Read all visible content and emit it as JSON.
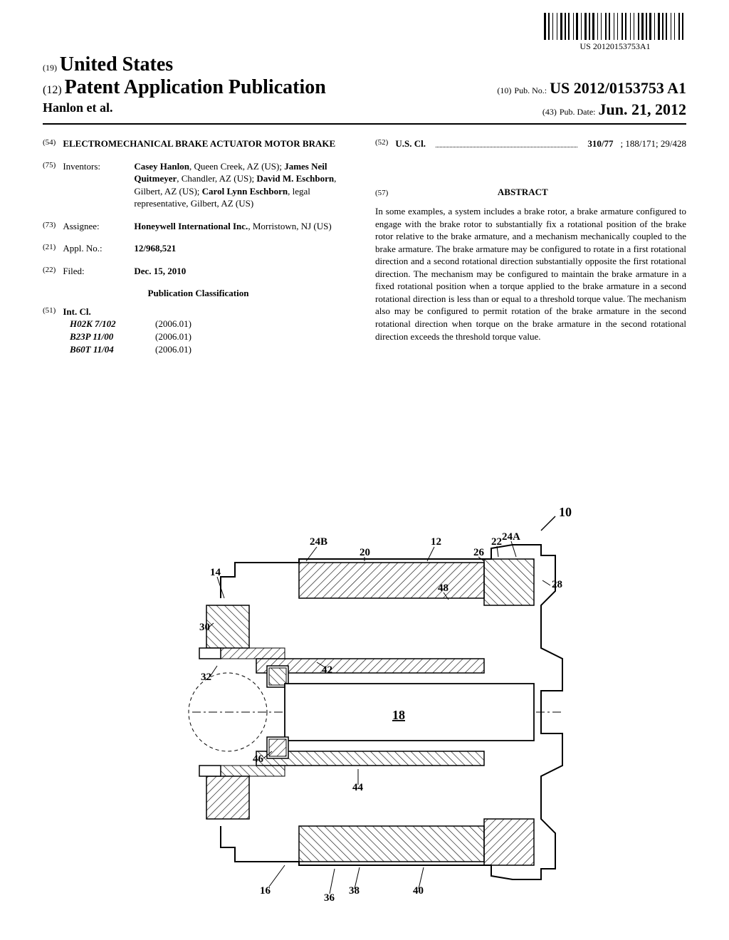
{
  "barcode": {
    "text": "US 20120153753A1",
    "bar_widths": [
      3,
      1,
      2,
      2,
      1,
      3,
      1,
      2,
      3,
      1,
      2,
      1,
      2,
      3,
      1,
      1,
      3,
      2,
      1,
      2,
      3,
      1,
      2,
      1,
      3,
      2,
      1,
      2,
      1,
      3,
      2,
      1,
      2,
      3,
      1,
      2,
      1,
      3,
      2,
      1,
      2,
      3,
      1,
      2,
      1,
      3,
      2,
      1,
      3,
      1,
      2,
      1,
      3,
      2,
      1,
      2,
      3,
      1,
      2,
      1,
      2,
      3,
      1,
      2,
      1,
      3,
      2,
      1,
      2,
      3
    ]
  },
  "header": {
    "country_num": "(19)",
    "country": "United States",
    "pub_num": "(12)",
    "pub_title": "Patent Application Publication",
    "authors": "Hanlon et al.",
    "pubno_num": "(10)",
    "pubno_label": "Pub. No.:",
    "pubno_value": "US 2012/0153753 A1",
    "pubdate_num": "(43)",
    "pubdate_label": "Pub. Date:",
    "pubdate_value": "Jun. 21, 2012"
  },
  "left": {
    "title_num": "(54)",
    "title": "ELECTROMECHANICAL BRAKE ACTUATOR MOTOR BRAKE",
    "inventors_num": "(75)",
    "inventors_label": "Inventors:",
    "inventors_html": "<b>Casey Hanlon</b>, Queen Creek, AZ (US); <b>James Neil Quitmeyer</b>, Chandler, AZ (US); <b>David M. Eschborn</b>, Gilbert, AZ (US); <b>Carol Lynn Eschborn</b>, legal representative, Gilbert, AZ (US)",
    "assignee_num": "(73)",
    "assignee_label": "Assignee:",
    "assignee_html": "<b>Honeywell International Inc.</b>, Morristown, NJ (US)",
    "applno_num": "(21)",
    "applno_label": "Appl. No.:",
    "applno_value": "12/968,521",
    "filed_num": "(22)",
    "filed_label": "Filed:",
    "filed_value": "Dec. 15, 2010",
    "pubclass_header": "Publication Classification",
    "intcl_num": "(51)",
    "intcl_label": "Int. Cl.",
    "intcl": [
      {
        "code": "H02K 7/102",
        "year": "(2006.01)"
      },
      {
        "code": "B23P 11/00",
        "year": "(2006.01)"
      },
      {
        "code": "B60T 11/04",
        "year": "(2006.01)"
      }
    ]
  },
  "right": {
    "uscl_num": "(52)",
    "uscl_label": "U.S. Cl.",
    "uscl_value": "310/77",
    "uscl_extra": "; 188/171; 29/428",
    "abstract_num": "(57)",
    "abstract_header": "ABSTRACT",
    "abstract_text": "In some examples, a system includes a brake rotor, a brake armature configured to engage with the brake rotor to substantially fix a rotational position of the brake rotor relative to the brake armature, and a mechanism mechanically coupled to the brake armature. The brake armature may be configured to rotate in a first rotational direction and a second rotational direction substantially opposite the first rotational direction. The mechanism may be configured to maintain the brake armature in a fixed rotational position when a torque applied to the brake armature in a second rotational direction is less than or equal to a threshold torque value. The mechanism also may be configured to permit rotation of the brake armature in the second rotational direction when torque on the brake armature in the second rotational direction exceeds the threshold torque value."
  },
  "figure": {
    "ref_main": "10",
    "labels": [
      "24B",
      "12",
      "24A",
      "14",
      "20",
      "26",
      "22",
      "28",
      "48",
      "30",
      "42",
      "32",
      "18",
      "46",
      "44",
      "16",
      "36",
      "38",
      "40"
    ],
    "stroke": "#000000",
    "hatch_color": "#000000",
    "bg": "#ffffff"
  }
}
